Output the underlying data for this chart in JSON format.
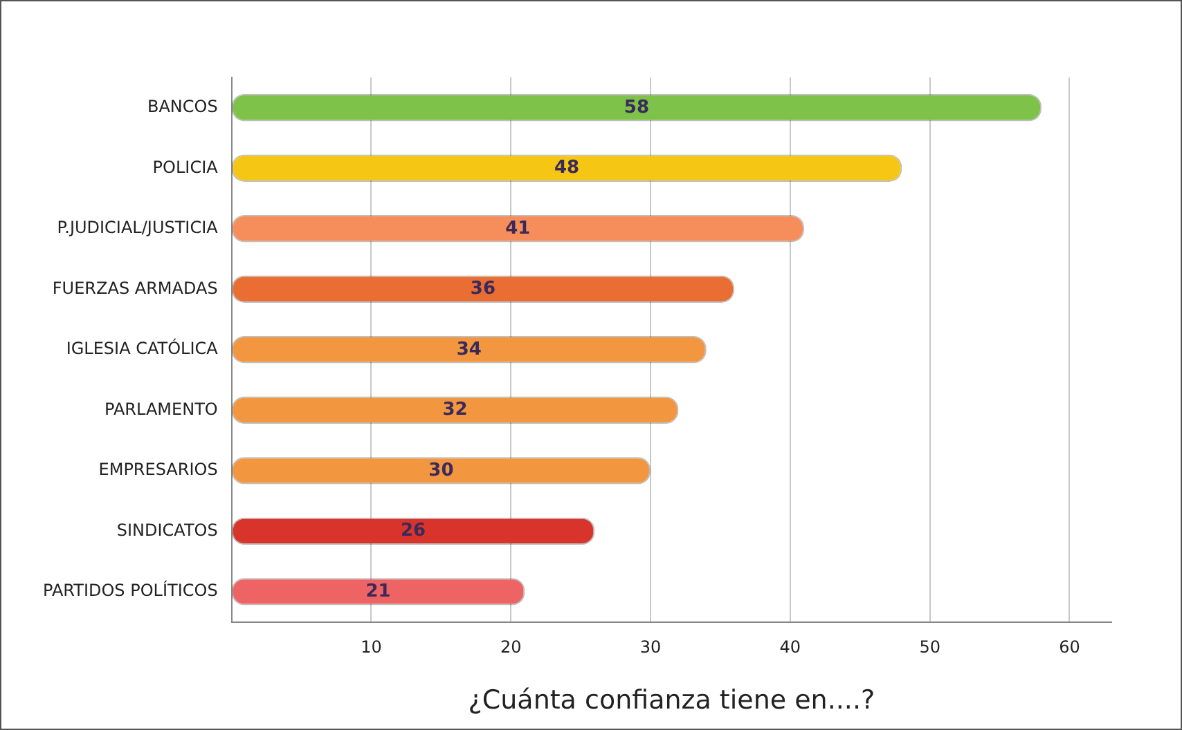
{
  "chart_data": {
    "type": "bar",
    "orientation": "horizontal",
    "xlabel": "¿Cuánta confianza tiene en....?",
    "categories": [
      "BANCOS",
      "POLICIA",
      "P.JUDICIAL/JUSTICIA",
      "FUERZAS ARMADAS",
      "IGLESIA CATÓLICA",
      "PARLAMENTO",
      "EMPRESARIOS",
      "SINDICATOS",
      "PARTIDOS POLÍTICOS"
    ],
    "values": [
      58,
      48,
      41,
      36,
      34,
      32,
      30,
      26,
      21
    ],
    "colors": [
      "#7ec24a",
      "#f6c614",
      "#f68e5c",
      "#ea6d33",
      "#f39640",
      "#f39640",
      "#f39640",
      "#d9342c",
      "#ee6464"
    ],
    "xlim": [
      0,
      63
    ],
    "xticks": [
      10,
      20,
      30,
      40,
      50,
      60
    ],
    "grid": "x",
    "data_labels": true
  }
}
